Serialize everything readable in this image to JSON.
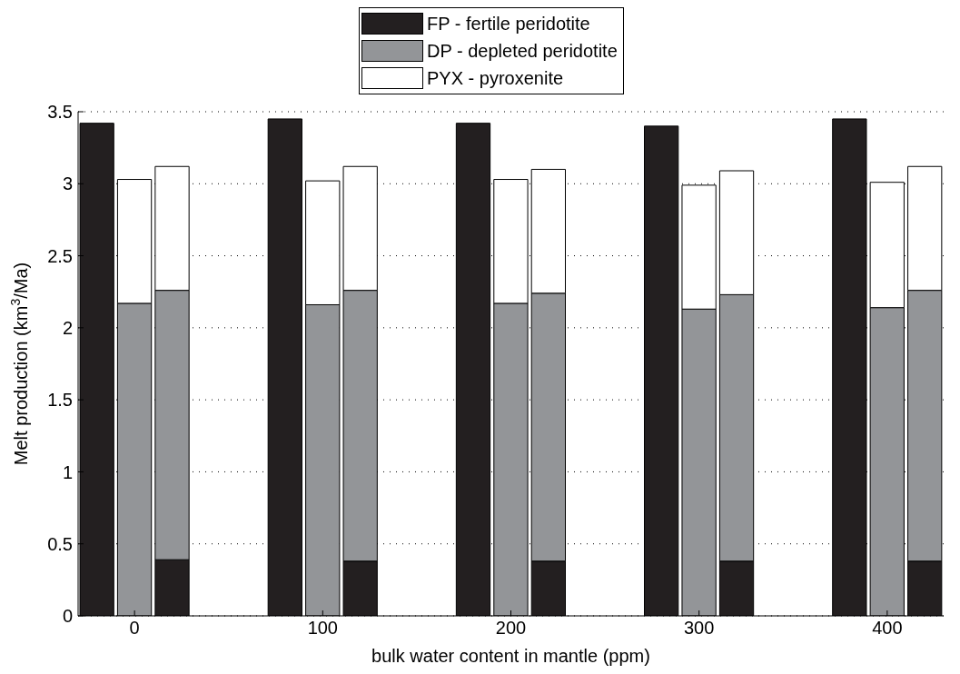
{
  "chart_data": {
    "type": "bar",
    "stacked": true,
    "xlabel": "bulk water content in mantle (ppm)",
    "ylabel": "Melt production (km$^{3}$/Ma)",
    "xlim": [
      -30,
      430
    ],
    "xticks": [
      0,
      100,
      200,
      300,
      400
    ],
    "ylim": [
      0,
      3.5
    ],
    "yticks": [
      0,
      0.5,
      1,
      1.5,
      2,
      2.5,
      3,
      3.5
    ],
    "grid": "y",
    "legend": "top",
    "x": [
      -20,
      0,
      20,
      80,
      100,
      120,
      180,
      200,
      220,
      280,
      300,
      320,
      380,
      400,
      420
    ],
    "series": [
      {
        "name": "FP - fertile peridotite",
        "color": "#231f20",
        "values": [
          3.42,
          null,
          0.39,
          3.45,
          null,
          0.38,
          3.42,
          null,
          0.38,
          3.4,
          null,
          0.38,
          3.45,
          null,
          0.38
        ]
      },
      {
        "name": "DP - depleted peridotite",
        "color": "#939598",
        "values": [
          null,
          2.17,
          1.87,
          null,
          2.16,
          1.88,
          null,
          2.17,
          1.86,
          null,
          2.13,
          1.85,
          null,
          2.14,
          1.88
        ]
      },
      {
        "name": "PYX - pyroxenite",
        "color": "#ffffff",
        "values": [
          null,
          0.86,
          0.86,
          null,
          0.86,
          0.86,
          null,
          0.86,
          0.86,
          null,
          0.86,
          0.86,
          null,
          0.87,
          0.86
        ]
      }
    ]
  }
}
